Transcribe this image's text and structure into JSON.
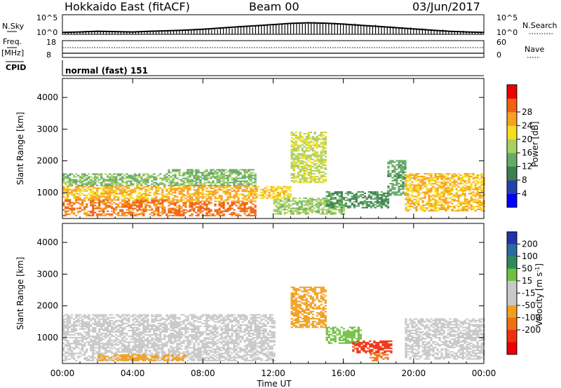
{
  "header": {
    "station": "Hokkaido East (fitACF)",
    "beam": "Beam 00",
    "date": "03/Jun/2017"
  },
  "top_panels": {
    "nsky_label": "N.Sky",
    "nsky_ticks": [
      "10^5",
      "10^0"
    ],
    "nsearch_label": "N.Search",
    "freq_label_1": "Freq.",
    "freq_label_2": "[MHz]",
    "freq_ticks": [
      "18",
      "8"
    ],
    "nave_label": "Nave",
    "nave_ticks": [
      "60",
      "0"
    ],
    "cpid_label": "CPID",
    "cpid_value": "normal (fast) 151"
  },
  "colors": {
    "power": [
      "#0000ff",
      "#2244aa",
      "#3a8050",
      "#66aa66",
      "#a8d060",
      "#f5dd20",
      "#f8a020",
      "#f06010",
      "#ee0000"
    ],
    "velocity": [
      "#2233aa",
      "#2a6aa0",
      "#2e8b57",
      "#70c040",
      "#c8c8c8",
      "#c8c8c8",
      "#f0a020",
      "#f07010",
      "#ee3010",
      "#ee0000"
    ]
  },
  "chart_data": [
    {
      "type": "line",
      "title": "N.Sky",
      "y_scale": "log",
      "ylim": [
        1,
        100000
      ],
      "series": [
        {
          "name": "N.Sky",
          "x": [
            0,
            1,
            2,
            3,
            4,
            5,
            6,
            7,
            8,
            9,
            10,
            11,
            12,
            13,
            14,
            15,
            16,
            17,
            18,
            19,
            20,
            21,
            22,
            23,
            24
          ],
          "values": [
            3,
            4,
            6,
            5,
            4,
            6,
            8,
            12,
            20,
            40,
            80,
            150,
            300,
            600,
            900,
            700,
            400,
            200,
            100,
            50,
            25,
            12,
            6,
            4,
            3
          ]
        }
      ]
    },
    {
      "type": "line",
      "title": "Freq. [MHz]",
      "ylim": [
        8,
        18
      ],
      "series": [
        {
          "name": "Freq.",
          "x": [
            0,
            24
          ],
          "values": [
            10.5,
            10.5
          ]
        }
      ]
    },
    {
      "type": "heatmap",
      "xlabel": "Time UT",
      "ylabel": "Slant Range [km]",
      "x_ticks": [
        "00:00",
        "04:00",
        "08:00",
        "12:00",
        "16:00",
        "20:00",
        "00:00"
      ],
      "y_ticks": [
        "1000",
        "2000",
        "3000",
        "4000"
      ],
      "xlim": [
        0,
        24
      ],
      "ylim": [
        180,
        4600
      ],
      "colorbar": {
        "label": "Power [dB]",
        "ticks": [
          "4",
          "8",
          "12",
          "16",
          "20",
          "24",
          "28"
        ]
      },
      "regions": [
        {
          "t0": 0,
          "t1": 6,
          "r0": 250,
          "r1": 750,
          "value": 27
        },
        {
          "t0": 0,
          "t1": 6,
          "r0": 800,
          "r1": 1200,
          "value": 23
        },
        {
          "t0": 0,
          "t1": 6,
          "r0": 1200,
          "r1": 1600,
          "value": 14
        },
        {
          "t0": 6,
          "t1": 11,
          "r0": 250,
          "r1": 700,
          "value": 28
        },
        {
          "t0": 6,
          "t1": 11,
          "r0": 700,
          "r1": 1200,
          "value": 24
        },
        {
          "t0": 6,
          "t1": 11,
          "r0": 1200,
          "r1": 1700,
          "value": 14
        },
        {
          "t0": 11,
          "t1": 13,
          "r0": 800,
          "r1": 1200,
          "value": 22
        },
        {
          "t0": 12,
          "t1": 16,
          "r0": 300,
          "r1": 800,
          "value": 16
        },
        {
          "t0": 13,
          "t1": 15,
          "r0": 1300,
          "r1": 2900,
          "value": 18
        },
        {
          "t0": 15,
          "t1": 18.5,
          "r0": 500,
          "r1": 1000,
          "value": 10
        },
        {
          "t0": 18.5,
          "t1": 19.5,
          "r0": 900,
          "r1": 2000,
          "value": 12
        },
        {
          "t0": 19.5,
          "t1": 24,
          "r0": 400,
          "r1": 1600,
          "value": 23
        }
      ]
    },
    {
      "type": "heatmap",
      "xlabel": "Time UT",
      "ylabel": "Slant Range [km]",
      "x_ticks": [
        "00:00",
        "04:00",
        "08:00",
        "12:00",
        "16:00",
        "20:00",
        "00:00"
      ],
      "y_ticks": [
        "1000",
        "2000",
        "3000",
        "4000"
      ],
      "xlim": [
        0,
        24
      ],
      "ylim": [
        180,
        4600
      ],
      "colorbar": {
        "label": "Velocity [m s^-1]",
        "ticks": [
          "200",
          "100",
          "50",
          "15",
          "-15",
          "-50",
          "-100",
          "-200"
        ]
      },
      "regions": [
        {
          "t0": 0,
          "t1": 12,
          "r0": 250,
          "r1": 1700,
          "value": 0
        },
        {
          "t0": 2,
          "t1": 7,
          "r0": 250,
          "r1": 450,
          "value": -40
        },
        {
          "t0": 13,
          "t1": 15,
          "r0": 1300,
          "r1": 2600,
          "value": -30
        },
        {
          "t0": 15,
          "t1": 17,
          "r0": 800,
          "r1": 1300,
          "value": 40
        },
        {
          "t0": 16.5,
          "t1": 18.7,
          "r0": 500,
          "r1": 900,
          "value": -120
        },
        {
          "t0": 17.5,
          "t1": 18.5,
          "r0": 250,
          "r1": 500,
          "value": -60
        },
        {
          "t0": 19.5,
          "t1": 24,
          "r0": 300,
          "r1": 1600,
          "value": 0
        }
      ]
    }
  ]
}
